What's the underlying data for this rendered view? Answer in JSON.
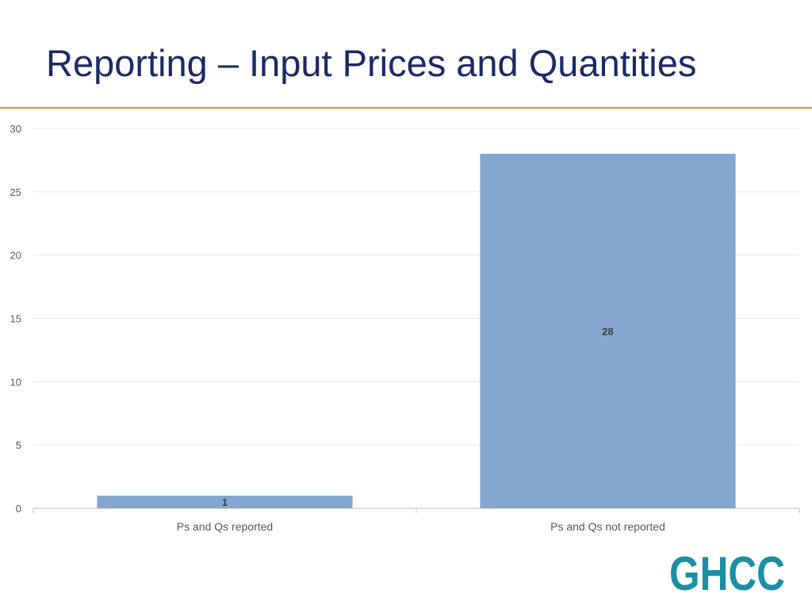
{
  "slide": {
    "title": "Reporting – Input Prices and Quantities"
  },
  "logo": {
    "text": "GHCC"
  },
  "colors": {
    "title": "#1a2a66",
    "accent_rule": "#e0883a",
    "bar": "#85a6cf",
    "gridline": "#e6e6e6",
    "axis": "#bfbfbf",
    "tick_text": "#595959",
    "data_label": "#404040",
    "logo": "#1b8fa5"
  },
  "chart_data": {
    "type": "bar",
    "categories": [
      "Ps and Qs reported",
      "Ps and Qs not reported"
    ],
    "values": [
      1,
      28
    ],
    "data_labels": [
      "1",
      "28"
    ],
    "title": "",
    "xlabel": "",
    "ylabel": "",
    "ylim": [
      0,
      30
    ],
    "yticks": [
      0,
      5,
      10,
      15,
      20,
      25,
      30
    ],
    "grid": true,
    "legend": "none"
  }
}
